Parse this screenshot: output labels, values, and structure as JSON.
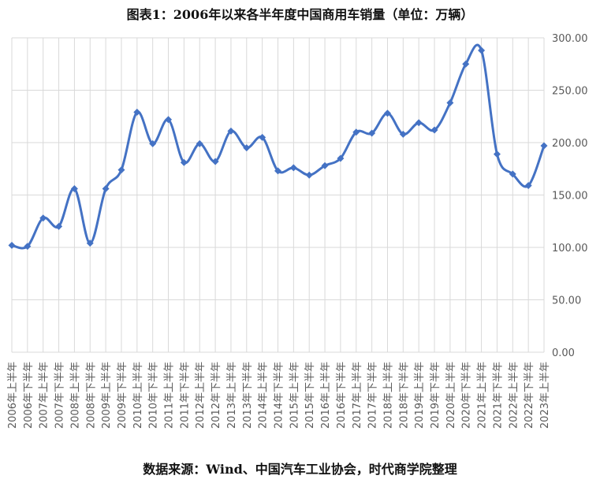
{
  "chart_data": {
    "type": "line",
    "title": "图表1：2006年以来各半年度中国商用车销量（单位：万辆）",
    "source": "数据来源：Wind、中国汽车工业协会，时代商学院整理",
    "xlabel": "",
    "ylabel": "",
    "ylim": [
      0,
      300
    ],
    "yticks": [
      "0.00",
      "50.00",
      "100.00",
      "150.00",
      "200.00",
      "250.00",
      "300.00"
    ],
    "grid": true,
    "categories": [
      "2006年上半年",
      "2006年下半年",
      "2007年上半年",
      "2007年下半年",
      "2008年上半年",
      "2008年下半年",
      "2009年上半年",
      "2009年下半年",
      "2010年上半年",
      "2010年下半年",
      "2011年上半年",
      "2011年下半年",
      "2012年上半年",
      "2012年下半年",
      "2013年上半年",
      "2013年下半年",
      "2014年上半年",
      "2014年下半年",
      "2015年上半年",
      "2015年下半年",
      "2016年上半年",
      "2016年下半年",
      "2017年上半年",
      "2017年下半年",
      "2018年上半年",
      "2018年下半年",
      "2019年上半年",
      "2019年下半年",
      "2020年上半年",
      "2020年下半年",
      "2021年上半年",
      "2021年下半年",
      "2022年上半年",
      "2022年下半年",
      "2023年上半年"
    ],
    "series": [
      {
        "color": "#4472C4",
        "values": [
          102,
          101,
          128,
          120,
          156,
          104,
          156,
          174,
          229,
          199,
          222,
          181,
          199,
          182,
          211,
          195,
          205,
          173,
          176,
          169,
          178,
          185,
          210,
          209,
          228,
          208,
          219,
          212,
          238,
          275,
          288,
          189,
          170,
          159,
          197
        ]
      }
    ]
  }
}
